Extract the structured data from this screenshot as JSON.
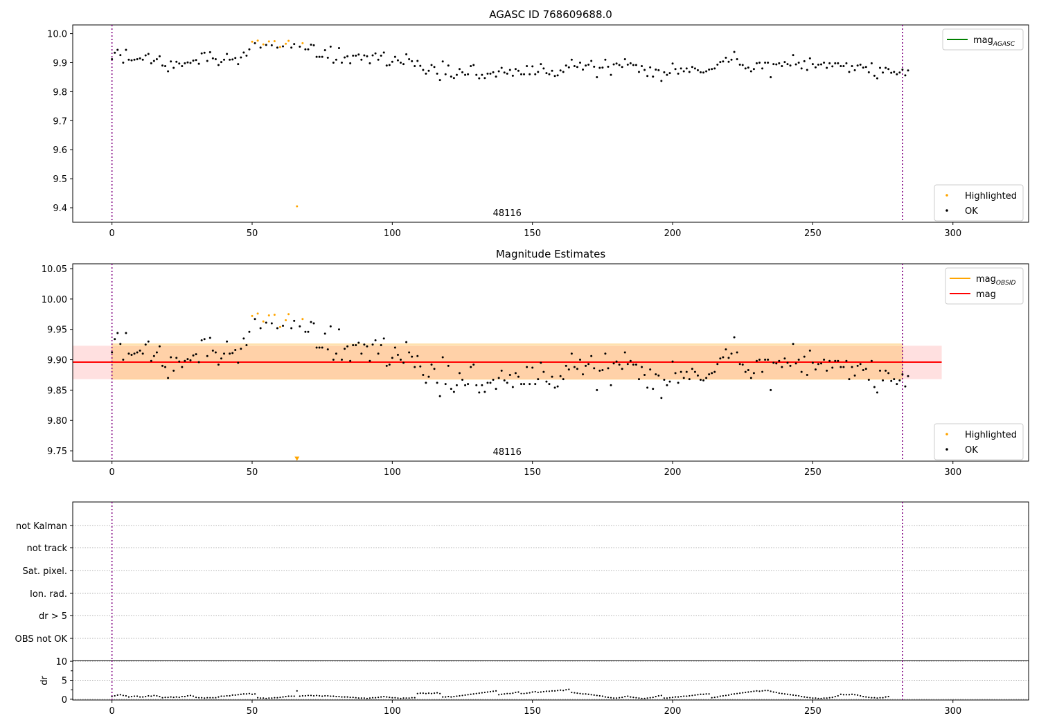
{
  "figure": {
    "chart_data": [
      {
        "type": "scatter",
        "title": "AGASC ID 768609688.0",
        "xlabel": "",
        "ylabel": "",
        "xlim": [
          -14,
          327
        ],
        "ylim": [
          9.35,
          10.03
        ],
        "xticks": [
          0,
          50,
          100,
          150,
          200,
          250,
          300
        ],
        "yticks": [
          9.4,
          9.5,
          9.6,
          9.7,
          9.8,
          9.9,
          10.0
        ],
        "ytick_decimals": 1,
        "vlines": [
          0,
          282
        ],
        "annotation": "48116",
        "legend_top": [
          {
            "label": "mag",
            "label_sub": "AGASC",
            "color": "#008000"
          }
        ],
        "legend_bottom": [
          {
            "label": "Highlighted",
            "color": "#ffa500"
          },
          {
            "label": "OK",
            "color": "#000000"
          }
        ],
        "outlier": {
          "x": 66,
          "y": 9.405
        }
      },
      {
        "type": "scatter",
        "title": "Magnitude Estimates",
        "xlabel": "",
        "ylabel": "",
        "xlim": [
          -14,
          327
        ],
        "ylim": [
          9.733,
          10.058
        ],
        "xticks": [
          0,
          50,
          100,
          150,
          200,
          250,
          300
        ],
        "yticks": [
          9.75,
          9.8,
          9.85,
          9.9,
          9.95,
          10.0,
          10.05
        ],
        "ytick_decimals": 2,
        "vlines": [
          0,
          282
        ],
        "annotation": "48116",
        "mag": 9.896,
        "mag_band": [
          9.868,
          9.923
        ],
        "mag_obsid_band": [
          9.868,
          9.926
        ],
        "band_x": [
          0,
          296
        ],
        "legend_top": [
          {
            "label": "mag",
            "label_sub": "OBSID",
            "color": "#ffa500"
          },
          {
            "label": "mag",
            "label_sub": "",
            "color": "#ff0000"
          }
        ],
        "legend_bottom": [
          {
            "label": "Highlighted",
            "color": "#ffa500"
          },
          {
            "label": "OK",
            "color": "#000000"
          }
        ],
        "outlier_marker": {
          "x": 66,
          "y": 9.737
        }
      },
      {
        "type": "table",
        "title": "",
        "categories": [
          "not Kalman",
          "not track",
          "Sat. pixel.",
          "Ion. rad.",
          "dr > 5",
          "OBS not OK"
        ],
        "xlim": [
          -14,
          327
        ],
        "vlines": [
          0,
          282
        ]
      },
      {
        "type": "scatter",
        "title": "",
        "xlabel": "",
        "ylabel": "dr",
        "xlim": [
          -14,
          327
        ],
        "ylim": [
          -0.2,
          10.2
        ],
        "xticks": [
          0,
          50,
          100,
          150,
          200,
          250,
          300
        ],
        "yticks": [
          0,
          5,
          10
        ],
        "vlines": [
          0,
          282
        ]
      }
    ],
    "series": {
      "x_range": [
        0,
        282
      ],
      "highlight_x": [
        50,
        52,
        54,
        56,
        58,
        60,
        62,
        63,
        66,
        68
      ],
      "mag_y": [
        9.912,
        9.934,
        9.944,
        9.926,
        9.9,
        9.944,
        9.91,
        9.908,
        9.91,
        9.912,
        9.915,
        9.91,
        9.925,
        9.93,
        9.898,
        9.906,
        9.912,
        9.922,
        9.89,
        9.888,
        9.87,
        9.904,
        9.882,
        9.903,
        9.897,
        9.888,
        9.898,
        9.901,
        9.899,
        9.907,
        9.909,
        9.896,
        9.932,
        9.934,
        9.906,
        9.936,
        9.915,
        9.912,
        9.892,
        9.902,
        9.91,
        9.93,
        9.91,
        9.911,
        9.916,
        9.895,
        9.918,
        9.935,
        9.924,
        9.946,
        9.972,
        9.967,
        9.976,
        9.952,
        9.963,
        9.961,
        9.973,
        9.96,
        9.974,
        9.952,
        9.954,
        9.956,
        9.965,
        9.975,
        9.952,
        9.964,
        9.405,
        9.955,
        9.967,
        9.946,
        9.946,
        9.962,
        9.96,
        9.92,
        9.92,
        9.92,
        9.943,
        9.917,
        9.955,
        9.9,
        9.91,
        9.95,
        9.9,
        9.918,
        9.922,
        9.898,
        9.924,
        9.924,
        9.928,
        9.91,
        9.925,
        9.922,
        9.898,
        9.925,
        9.932,
        9.91,
        9.924,
        9.935,
        9.89,
        9.892,
        9.903,
        9.92,
        9.908,
        9.9,
        9.895,
        9.929,
        9.912,
        9.905,
        9.888,
        9.906,
        9.889,
        9.875,
        9.862,
        9.872,
        9.892,
        9.885,
        9.862,
        9.84,
        9.904,
        9.86,
        9.89,
        9.852,
        9.847,
        9.858,
        9.878,
        9.867,
        9.858,
        9.86,
        9.888,
        9.892,
        9.858,
        9.846,
        9.858,
        9.847,
        9.862,
        9.862,
        9.867,
        9.852,
        9.87,
        9.882,
        9.866,
        9.862,
        9.875,
        9.855,
        9.878,
        9.872,
        9.86,
        9.86,
        9.888,
        9.86,
        9.887,
        9.86,
        9.868,
        9.895,
        9.88,
        9.864,
        9.86,
        9.872,
        9.854,
        9.856,
        9.873,
        9.868,
        9.89,
        9.884,
        9.91,
        9.888,
        9.885,
        9.9,
        9.876,
        9.89,
        9.893,
        9.906,
        9.886,
        9.85,
        9.882,
        9.883,
        9.91,
        9.886,
        9.858,
        9.894,
        9.897,
        9.892,
        9.885,
        9.912,
        9.893,
        9.898,
        9.892,
        9.892,
        9.868,
        9.888,
        9.875,
        9.854,
        9.884,
        9.852,
        9.876,
        9.874,
        9.837,
        9.867,
        9.858,
        9.864,
        9.897,
        9.878,
        9.862,
        9.88,
        9.87,
        9.88,
        9.868,
        9.885,
        9.88,
        9.874,
        9.867,
        9.866,
        9.87,
        9.876,
        9.878,
        9.88,
        9.893,
        9.902,
        9.904,
        9.917,
        9.903,
        9.91,
        9.937,
        9.912,
        9.893,
        9.892,
        9.88,
        9.883,
        9.87,
        9.878,
        9.898,
        9.9,
        9.88,
        9.9,
        9.9,
        9.85,
        9.895,
        9.894,
        9.898,
        9.888,
        9.902,
        9.895,
        9.89,
        9.926,
        9.894,
        9.9,
        9.88,
        9.905,
        9.875,
        9.915,
        9.895,
        9.884,
        9.893,
        9.894,
        9.9,
        9.882,
        9.898,
        9.887,
        9.898,
        9.898,
        9.888,
        9.888,
        9.898,
        9.868,
        9.888,
        9.874,
        9.89,
        9.893,
        9.883,
        9.885,
        9.867,
        9.898,
        9.855,
        9.846,
        9.882,
        9.866,
        9.882,
        9.878,
        9.865,
        9.868,
        9.86,
        9.866,
        9.876,
        9.856,
        9.873
      ],
      "dr_y": [
        0.7,
        0.9,
        1.1,
        1.2,
        1.0,
        0.9,
        0.6,
        0.7,
        0.8,
        0.8,
        0.6,
        0.6,
        0.7,
        0.9,
        0.8,
        1.0,
        0.9,
        0.7,
        0.4,
        0.5,
        0.5,
        0.6,
        0.5,
        0.6,
        0.5,
        0.7,
        0.7,
        0.9,
        1.0,
        0.8,
        0.5,
        0.4,
        0.4,
        0.3,
        0.4,
        0.4,
        0.4,
        0.4,
        0.6,
        0.8,
        0.8,
        0.9,
        0.9,
        1.1,
        1.1,
        1.2,
        1.3,
        1.4,
        1.4,
        1.5,
        1.3,
        1.4,
        0.4,
        0.3,
        0.3,
        0.2,
        0.3,
        0.3,
        0.4,
        0.4,
        0.5,
        0.6,
        0.7,
        0.8,
        0.8,
        0.8,
        2.2,
        0.8,
        0.9,
        0.9,
        1.0,
        1.0,
        0.9,
        1.0,
        0.9,
        0.8,
        0.9,
        0.9,
        0.8,
        0.8,
        0.7,
        0.7,
        0.6,
        0.6,
        0.6,
        0.5,
        0.5,
        0.4,
        0.3,
        0.3,
        0.3,
        0.2,
        0.3,
        0.4,
        0.4,
        0.5,
        0.6,
        0.7,
        0.6,
        0.5,
        0.4,
        0.4,
        0.3,
        0.2,
        0.3,
        0.3,
        0.3,
        0.4,
        0.4,
        1.5,
        1.6,
        1.6,
        1.5,
        1.6,
        1.5,
        1.6,
        1.7,
        1.5,
        0.6,
        0.6,
        0.7,
        0.6,
        0.7,
        0.8,
        0.9,
        1.0,
        1.1,
        1.2,
        1.3,
        1.4,
        1.5,
        1.6,
        1.7,
        1.8,
        1.9,
        2.0,
        2.1,
        2.2,
        1.2,
        1.3,
        1.4,
        1.5,
        1.5,
        1.6,
        1.8,
        1.9,
        1.5,
        1.5,
        1.6,
        1.7,
        1.9,
        2.0,
        1.8,
        1.9,
        2.0,
        2.1,
        2.1,
        2.2,
        2.2,
        2.3,
        2.4,
        2.3,
        2.5,
        2.6,
        1.8,
        1.7,
        1.6,
        1.5,
        1.4,
        1.4,
        1.3,
        1.2,
        1.1,
        1.0,
        0.9,
        0.8,
        0.6,
        0.5,
        0.4,
        0.3,
        0.3,
        0.4,
        0.5,
        0.7,
        0.8,
        0.6,
        0.5,
        0.4,
        0.3,
        0.2,
        0.2,
        0.3,
        0.4,
        0.5,
        0.7,
        0.9,
        1.0,
        0.3,
        0.3,
        0.4,
        0.5,
        0.6,
        0.6,
        0.7,
        0.8,
        0.8,
        0.9,
        1.0,
        1.1,
        1.2,
        1.3,
        1.3,
        1.4,
        1.4,
        0.4,
        0.5,
        0.6,
        0.8,
        0.9,
        1.0,
        1.1,
        1.3,
        1.4,
        1.5,
        1.6,
        1.7,
        1.8,
        1.9,
        2.0,
        2.1,
        2.2,
        2.1,
        2.2,
        2.3,
        2.3,
        2.1,
        1.9,
        1.8,
        1.6,
        1.5,
        1.4,
        1.3,
        1.2,
        1.1,
        1.0,
        0.9,
        0.7,
        0.6,
        0.5,
        0.4,
        0.3,
        0.3,
        0.2,
        0.2,
        0.3,
        0.3,
        0.4,
        0.5,
        0.7,
        0.9,
        1.3,
        1.2,
        1.2,
        1.2,
        1.3,
        1.2,
        1.1,
        0.9,
        0.7,
        0.6,
        0.5,
        0.4,
        0.4,
        0.3,
        0.4,
        0.4,
        0.6,
        0.7
      ]
    }
  }
}
